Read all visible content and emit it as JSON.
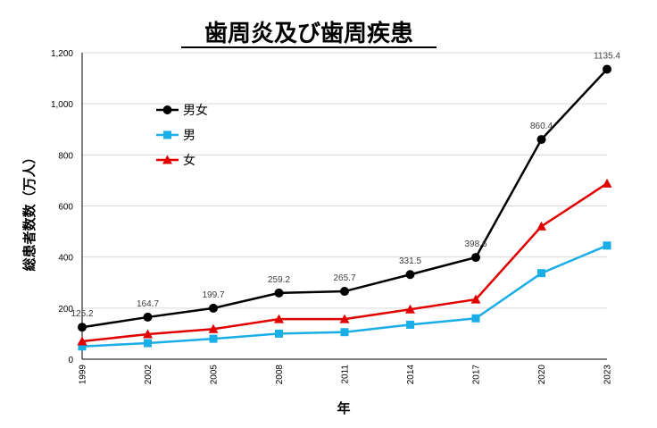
{
  "chart_data": {
    "type": "line",
    "title": "歯周炎及び歯周疾患",
    "xlabel": "年",
    "ylabel": "総患者数数（万人）",
    "categories": [
      "1999",
      "2002",
      "2005",
      "2008",
      "2011",
      "2014",
      "2017",
      "2020",
      "2023"
    ],
    "ylim": [
      0,
      1200
    ],
    "yticks": [
      "0",
      "200",
      "400",
      "600",
      "800",
      "1,000",
      "1,200"
    ],
    "grid": true,
    "legend_position": "top-left",
    "series": [
      {
        "name": "男女",
        "color": "#000000",
        "marker": "circle",
        "values": [
          125.2,
          164.7,
          199.7,
          259.2,
          265.7,
          331.5,
          398.6,
          860.4,
          1135.4
        ],
        "labels": [
          "125.2",
          "164.7",
          "199.7",
          "259.2",
          "265.7",
          "331.5",
          "398.6",
          "860.4",
          "1135.4"
        ]
      },
      {
        "name": "男",
        "color": "#1aaee6",
        "marker": "square",
        "values": [
          50,
          63,
          80,
          100,
          106,
          135,
          160,
          337,
          445
        ]
      },
      {
        "name": "女",
        "color": "#e00000",
        "marker": "triangle",
        "values": [
          70,
          98,
          118,
          157,
          157,
          195,
          234,
          520,
          688
        ]
      }
    ]
  }
}
